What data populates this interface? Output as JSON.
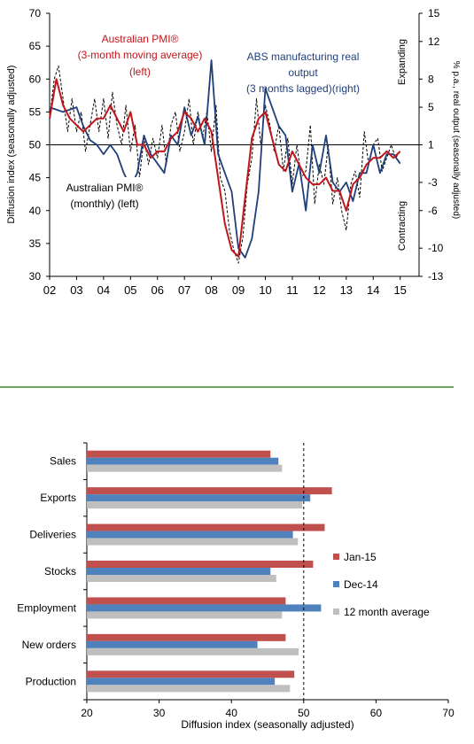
{
  "colors": {
    "pmi_3m": "#c0151b",
    "pmi_monthly": "#000000",
    "abs_output": "#1f3f7a",
    "jan15": "#c0504d",
    "dec14": "#4f81bd",
    "avg12": "#bfbfbf",
    "divider": "#3a8a2a"
  },
  "chart_data": [
    {
      "type": "line",
      "ylabel": "Diffusion index (seasonally adjusted)",
      "y2label": "% p.a., real output (seasonally adjusted)",
      "ylim": [
        30,
        70
      ],
      "y2lim": [
        -13,
        15
      ],
      "yticks": [
        30,
        35,
        40,
        45,
        50,
        55,
        60,
        65,
        70
      ],
      "y2ticks": [
        -13,
        -10,
        -6,
        -3,
        1,
        5,
        8,
        12,
        15
      ],
      "xlim": [
        2002,
        2015.7
      ],
      "xticks": [
        "02",
        "03",
        "04",
        "05",
        "06",
        "07",
        "08",
        "09",
        "10",
        "11",
        "12",
        "13",
        "14",
        "15"
      ],
      "reference_y": 50,
      "side_labels": {
        "top": "Expanding",
        "bottom": "Contracting"
      },
      "annotations": {
        "pmi_3m": [
          "Australian PMI®",
          "(3-month moving average)",
          "(left)"
        ],
        "abs_output": [
          "ABS manufacturing real",
          "output",
          "(3 months lagged)(right)"
        ],
        "pmi_monthly": [
          "Australian PMI®",
          "(monthly) (left)"
        ]
      },
      "series": [
        {
          "key": "pmi_monthly",
          "axis": "left",
          "x": [
            2002.0,
            2002.17,
            2002.33,
            2002.5,
            2002.67,
            2002.83,
            2003.0,
            2003.17,
            2003.33,
            2003.5,
            2003.67,
            2003.83,
            2004.0,
            2004.17,
            2004.33,
            2004.5,
            2004.67,
            2004.83,
            2005.0,
            2005.17,
            2005.33,
            2005.5,
            2005.67,
            2005.83,
            2006.0,
            2006.17,
            2006.33,
            2006.5,
            2006.67,
            2006.83,
            2007.0,
            2007.17,
            2007.33,
            2007.5,
            2007.67,
            2007.83,
            2008.0,
            2008.17,
            2008.33,
            2008.5,
            2008.67,
            2008.83,
            2009.0,
            2009.17,
            2009.33,
            2009.5,
            2009.67,
            2009.83,
            2010.0,
            2010.17,
            2010.33,
            2010.5,
            2010.67,
            2010.83,
            2011.0,
            2011.17,
            2011.33,
            2011.5,
            2011.67,
            2011.83,
            2012.0,
            2012.17,
            2012.33,
            2012.5,
            2012.67,
            2012.83,
            2013.0,
            2013.17,
            2013.33,
            2013.5,
            2013.67,
            2013.83,
            2014.0,
            2014.17,
            2014.33,
            2014.5,
            2014.67,
            2014.83,
            2015.0
          ],
          "y": [
            54,
            60,
            62,
            57,
            52,
            57,
            52,
            55,
            49,
            53,
            57,
            52,
            57,
            51,
            58,
            53,
            50,
            56,
            49,
            53,
            45,
            51,
            47,
            51,
            48,
            53,
            47,
            53,
            55,
            49,
            52,
            57,
            50,
            55,
            51,
            55,
            49,
            56,
            45,
            43,
            37,
            34,
            32,
            36,
            44,
            48,
            57,
            50,
            56,
            53,
            49,
            53,
            46,
            51,
            44,
            50,
            45,
            46,
            53,
            41,
            47,
            44,
            50,
            41,
            45,
            40,
            37,
            44,
            46,
            42,
            52,
            47,
            50,
            51,
            46,
            48,
            50,
            48,
            49
          ]
        },
        {
          "key": "pmi_3m",
          "axis": "left",
          "x": [
            2002.0,
            2002.25,
            2002.5,
            2002.75,
            2003.0,
            2003.25,
            2003.5,
            2003.75,
            2004.0,
            2004.25,
            2004.5,
            2004.75,
            2005.0,
            2005.25,
            2005.5,
            2005.75,
            2006.0,
            2006.25,
            2006.5,
            2006.75,
            2007.0,
            2007.25,
            2007.5,
            2007.75,
            2008.0,
            2008.25,
            2008.5,
            2008.75,
            2009.0,
            2009.25,
            2009.5,
            2009.75,
            2010.0,
            2010.25,
            2010.5,
            2010.75,
            2011.0,
            2011.25,
            2011.5,
            2011.75,
            2012.0,
            2012.25,
            2012.5,
            2012.75,
            2013.0,
            2013.25,
            2013.5,
            2013.75,
            2014.0,
            2014.25,
            2014.5,
            2014.75,
            2015.0
          ],
          "y": [
            54,
            60,
            56,
            54,
            53,
            52,
            53,
            54,
            54,
            56,
            54,
            52,
            55,
            50,
            50,
            48,
            49,
            49,
            51,
            52,
            55,
            54,
            52,
            54,
            52,
            45,
            38,
            34,
            33,
            42,
            51,
            54,
            55,
            51,
            47,
            46,
            49,
            47,
            45,
            44,
            44,
            45,
            43,
            43,
            40,
            44,
            45,
            47,
            48,
            48,
            49,
            48,
            49
          ]
        },
        {
          "key": "abs_output",
          "axis": "right",
          "x": [
            2002.0,
            2002.5,
            2003.0,
            2003.25,
            2003.5,
            2003.75,
            2004.0,
            2004.25,
            2004.5,
            2004.75,
            2005.0,
            2005.25,
            2005.5,
            2005.75,
            2006.0,
            2006.25,
            2006.5,
            2006.75,
            2007.0,
            2007.25,
            2007.5,
            2007.75,
            2008.0,
            2008.25,
            2008.5,
            2008.75,
            2009.0,
            2009.25,
            2009.5,
            2009.75,
            2010.0,
            2010.25,
            2010.5,
            2010.75,
            2011.0,
            2011.25,
            2011.5,
            2011.75,
            2012.0,
            2012.25,
            2012.5,
            2012.75,
            2013.0,
            2013.25,
            2013.5,
            2013.75,
            2014.0,
            2014.25,
            2014.5,
            2014.75,
            2015.0
          ],
          "y": [
            5,
            4.5,
            5,
            3,
            1.5,
            1,
            0,
            1,
            0,
            -2,
            -3.5,
            -2,
            2,
            0,
            -1,
            -2,
            2,
            1,
            5,
            2,
            4,
            1,
            10,
            0,
            -2,
            -4,
            -10,
            -11,
            -9,
            -4,
            7,
            5,
            3,
            2,
            -4,
            -1,
            -6,
            1,
            -2,
            2,
            -3,
            -4,
            -3,
            -5,
            -2,
            -2,
            1,
            -2,
            0,
            0,
            -1
          ]
        }
      ]
    },
    {
      "type": "bar",
      "orientation": "horizontal",
      "xlabel": "Diffusion index (seasonally adjusted)",
      "xlim": [
        20,
        70
      ],
      "xticks": [
        20,
        30,
        40,
        50,
        60,
        70
      ],
      "reference_x": 50,
      "categories": [
        "Sales",
        "Exports",
        "Deliveries",
        "Stocks",
        "Employment",
        "New orders",
        "Production"
      ],
      "series": [
        {
          "key": "jan15",
          "name": "Jan-15",
          "values": [
            45.4,
            53.9,
            52.9,
            51.3,
            47.5,
            47.5,
            48.7
          ]
        },
        {
          "key": "dec14",
          "name": "Dec-14",
          "values": [
            46.5,
            50.9,
            48.5,
            45.4,
            52.4,
            43.6,
            46.0
          ]
        },
        {
          "key": "avg12",
          "name": "12 month average",
          "values": [
            47.0,
            49.8,
            49.2,
            46.2,
            47.0,
            49.3,
            48.1
          ]
        }
      ],
      "legend": "right"
    }
  ]
}
